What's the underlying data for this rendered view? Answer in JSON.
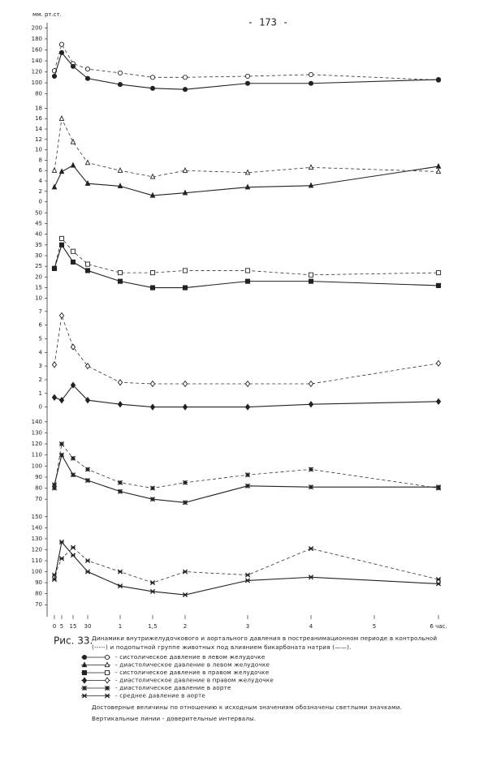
{
  "page_number": "- 173 -",
  "y_unit": "мм. рт.ст.",
  "x_axis": {
    "x": [
      0,
      5,
      15,
      30,
      60,
      90,
      120,
      180,
      240,
      360
    ],
    "xlim": [
      0,
      360
    ],
    "xticks": [
      {
        "value": 0,
        "label": "0"
      },
      {
        "value": 5,
        "label": "5"
      },
      {
        "value": 15,
        "label": "15"
      },
      {
        "value": 30,
        "label": "30"
      },
      {
        "value": 60,
        "label": "1"
      },
      {
        "value": 90,
        "label": "1,5"
      },
      {
        "value": 120,
        "label": "2"
      },
      {
        "value": 180,
        "label": "3"
      },
      {
        "value": 240,
        "label": "4"
      },
      {
        "value": 300,
        "label": "5"
      },
      {
        "value": 360,
        "label": "6 час."
      }
    ]
  },
  "chart_data": [
    {
      "type": "line",
      "marker": "circle",
      "label": "- систолическое давление в левом желудочке",
      "ylim": [
        75,
        205
      ],
      "yticks": [
        80,
        100,
        120,
        140,
        160,
        180,
        200
      ],
      "series": [
        {
          "dash": true,
          "color": "#333",
          "values": [
            122,
            170,
            135,
            125,
            118,
            110,
            110,
            112,
            115,
            105
          ]
        },
        {
          "dash": false,
          "color": "#222",
          "values": [
            112,
            155,
            130,
            108,
            97,
            90,
            88,
            99,
            99,
            106
          ]
        }
      ]
    },
    {
      "type": "line",
      "marker": "triangle",
      "label": "- диастолическое давление в левом желудочке",
      "ylim": [
        -1,
        19
      ],
      "yticks": [
        0,
        2,
        4,
        6,
        8,
        10,
        12,
        14,
        16,
        18
      ],
      "series": [
        {
          "dash": true,
          "color": "#333",
          "values": [
            6,
            16,
            11.5,
            7.5,
            6,
            4.8,
            6,
            5.6,
            6.6,
            5.8
          ]
        },
        {
          "dash": false,
          "color": "#222",
          "values": [
            2.8,
            5.8,
            7,
            3.5,
            3,
            1.2,
            1.7,
            2.8,
            3.1,
            6.8
          ]
        }
      ]
    },
    {
      "type": "line",
      "marker": "square",
      "label": "- систолическое давление в правом желудочке",
      "ylim": [
        8,
        52
      ],
      "yticks": [
        10,
        15,
        20,
        25,
        30,
        35,
        40,
        45,
        50
      ],
      "series": [
        {
          "dash": true,
          "color": "#333",
          "values": [
            24,
            38,
            32,
            26,
            22,
            22,
            23,
            23,
            21,
            22
          ]
        },
        {
          "dash": false,
          "color": "#222",
          "values": [
            24,
            35,
            27,
            23,
            18,
            15,
            15,
            18,
            18,
            16
          ]
        }
      ]
    },
    {
      "type": "line",
      "marker": "diamond",
      "label": "- диастолическое давление в правом желудочке",
      "ylim": [
        -0.5,
        8
      ],
      "yticks": [
        0,
        1,
        2,
        3,
        4,
        5,
        6,
        7
      ],
      "series": [
        {
          "dash": true,
          "color": "#333",
          "values": [
            3.1,
            6.7,
            4.4,
            3,
            1.8,
            1.7,
            1.7,
            1.7,
            1.7,
            3.2
          ]
        },
        {
          "dash": false,
          "color": "#222",
          "values": [
            0.7,
            0.5,
            1.6,
            0.5,
            0.2,
            0,
            0,
            0,
            0.2,
            0.4
          ]
        }
      ]
    },
    {
      "type": "line",
      "marker": "star",
      "label": "- диастолическое давление в аорте",
      "ylim": [
        65,
        145
      ],
      "yticks": [
        70,
        80,
        90,
        100,
        110,
        120,
        130,
        140
      ],
      "series": [
        {
          "dash": true,
          "color": "#333",
          "values": [
            80,
            120,
            107,
            97,
            85,
            80,
            85,
            92,
            97,
            80
          ]
        },
        {
          "dash": false,
          "color": "#222",
          "values": [
            83,
            110,
            92,
            87,
            77,
            70,
            67,
            82,
            81,
            81
          ]
        }
      ]
    },
    {
      "type": "line",
      "marker": "cross",
      "label": "- среднее давление в аорте",
      "ylim": [
        65,
        155
      ],
      "yticks": [
        70,
        80,
        90,
        100,
        110,
        120,
        130,
        140,
        150
      ],
      "series": [
        {
          "dash": true,
          "color": "#333",
          "values": [
            97,
            112,
            122,
            110,
            100,
            90,
            100,
            97,
            121,
            93
          ]
        },
        {
          "dash": false,
          "color": "#222",
          "values": [
            93,
            127,
            115,
            100,
            87,
            82,
            79,
            92,
            95,
            89
          ]
        }
      ]
    }
  ],
  "figure_label": "Рис. 33.",
  "caption": [
    "Динамики внутрижелудочкового и аортального давления в постреанимационном периоде в контрольной",
    "(-----) и подопытной группе животных под влиянием бикарбоната натрия (——)."
  ],
  "notes": [
    "Достоверные величины по отношению к исходным значениям обозначены светлыми значками.",
    "Вертикальные линии - доверительные интервалы."
  ]
}
